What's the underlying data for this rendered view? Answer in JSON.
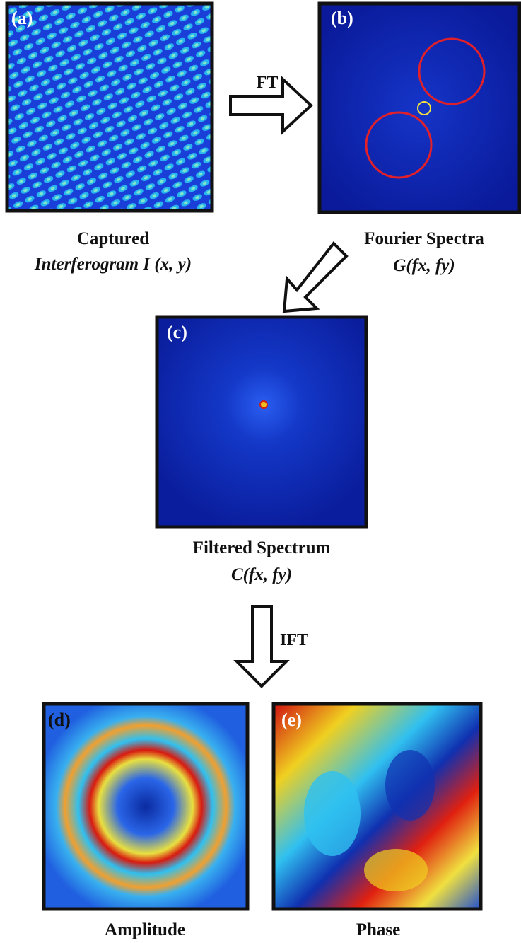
{
  "panels": [
    {
      "label": "(a)",
      "caption": [
        "Captured",
        "Interferogram I (x, y)"
      ]
    },
    {
      "label": "(b)",
      "caption": [
        "Fourier Spectra",
        "G(fx, fy)"
      ]
    },
    {
      "label": "(c)",
      "caption": [
        "Filtered Spectrum",
        "C(fx, fy)"
      ]
    },
    {
      "label": "(d)",
      "caption": [
        "Amplitude"
      ]
    },
    {
      "label": "(e)",
      "caption": [
        "Phase"
      ]
    }
  ],
  "arrows": [
    {
      "label": "FT"
    },
    {
      "label": "IFT"
    }
  ]
}
